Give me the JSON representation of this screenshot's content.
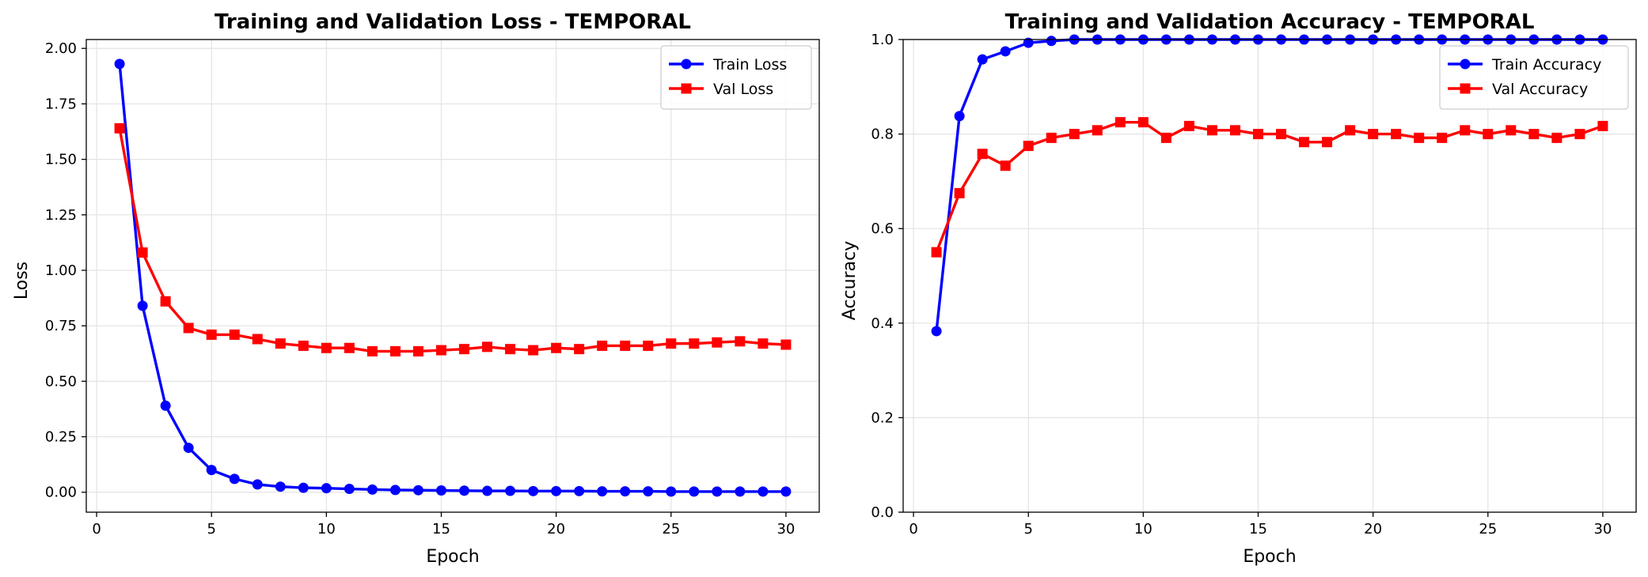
{
  "chart_data": [
    {
      "type": "line",
      "title": "Training and Validation Loss - TEMPORAL",
      "xlabel": "Epoch",
      "ylabel": "Loss",
      "xlim": [
        -0.45,
        31.45
      ],
      "ylim": [
        -0.09,
        2.04
      ],
      "xticks": [
        0,
        5,
        10,
        15,
        20,
        25,
        30
      ],
      "yticks": [
        0.0,
        0.25,
        0.5,
        0.75,
        1.0,
        1.25,
        1.5,
        1.75,
        2.0
      ],
      "ytick_labels": [
        "0.00",
        "0.25",
        "0.50",
        "0.75",
        "1.00",
        "1.25",
        "1.50",
        "1.75",
        "2.00"
      ],
      "grid": true,
      "legend_position": "upper right",
      "x": [
        1,
        2,
        3,
        4,
        5,
        6,
        7,
        8,
        9,
        10,
        11,
        12,
        13,
        14,
        15,
        16,
        17,
        18,
        19,
        20,
        21,
        22,
        23,
        24,
        25,
        26,
        27,
        28,
        29,
        30
      ],
      "series": [
        {
          "name": "Train Loss",
          "color": "#0000ff",
          "marker": "circle",
          "values": [
            1.93,
            0.84,
            0.39,
            0.2,
            0.1,
            0.06,
            0.035,
            0.025,
            0.02,
            0.018,
            0.015,
            0.012,
            0.01,
            0.009,
            0.008,
            0.007,
            0.006,
            0.006,
            0.005,
            0.005,
            0.005,
            0.004,
            0.004,
            0.004,
            0.003,
            0.003,
            0.003,
            0.003,
            0.003,
            0.003
          ]
        },
        {
          "name": "Val Loss",
          "color": "#ff0000",
          "marker": "square",
          "values": [
            1.64,
            1.08,
            0.86,
            0.74,
            0.71,
            0.71,
            0.69,
            0.67,
            0.66,
            0.65,
            0.65,
            0.635,
            0.635,
            0.635,
            0.64,
            0.645,
            0.655,
            0.645,
            0.64,
            0.65,
            0.645,
            0.66,
            0.66,
            0.66,
            0.67,
            0.67,
            0.675,
            0.68,
            0.67,
            0.665
          ]
        }
      ]
    },
    {
      "type": "line",
      "title": "Training and Validation Accuracy - TEMPORAL",
      "xlabel": "Epoch",
      "ylabel": "Accuracy",
      "xlim": [
        -0.45,
        31.45
      ],
      "ylim": [
        0.0,
        1.0
      ],
      "xticks": [
        0,
        5,
        10,
        15,
        20,
        25,
        30
      ],
      "yticks": [
        0.0,
        0.2,
        0.4,
        0.6,
        0.8,
        1.0
      ],
      "ytick_labels": [
        "0.0",
        "0.2",
        "0.4",
        "0.6",
        "0.8",
        "1.0"
      ],
      "grid": true,
      "legend_position": "upper right",
      "x": [
        1,
        2,
        3,
        4,
        5,
        6,
        7,
        8,
        9,
        10,
        11,
        12,
        13,
        14,
        15,
        16,
        17,
        18,
        19,
        20,
        21,
        22,
        23,
        24,
        25,
        26,
        27,
        28,
        29,
        30
      ],
      "series": [
        {
          "name": "Train Accuracy",
          "color": "#0000ff",
          "marker": "circle",
          "values": [
            0.383,
            0.838,
            0.958,
            0.975,
            0.993,
            0.997,
            1.0,
            1.0,
            1.0,
            1.0,
            1.0,
            1.0,
            1.0,
            1.0,
            1.0,
            1.0,
            1.0,
            1.0,
            1.0,
            1.0,
            1.0,
            1.0,
            1.0,
            1.0,
            1.0,
            1.0,
            1.0,
            1.0,
            1.0,
            1.0
          ]
        },
        {
          "name": "Val Accuracy",
          "color": "#ff0000",
          "marker": "square",
          "values": [
            0.55,
            0.675,
            0.758,
            0.733,
            0.775,
            0.792,
            0.8,
            0.808,
            0.825,
            0.825,
            0.792,
            0.817,
            0.808,
            0.808,
            0.8,
            0.8,
            0.783,
            0.783,
            0.808,
            0.8,
            0.8,
            0.792,
            0.792,
            0.808,
            0.8,
            0.808,
            0.8,
            0.792,
            0.8,
            0.817
          ]
        }
      ]
    }
  ]
}
